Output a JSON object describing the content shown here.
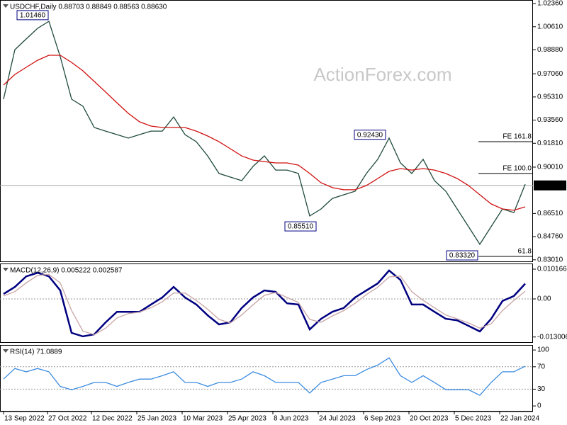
{
  "chart_data": [
    {
      "type": "line",
      "title": "USDCHF,Daily 0.88703 0.88849 0.88563 0.88630",
      "watermark": "ActionForex.com",
      "x": [
        0,
        8,
        16,
        24,
        32,
        40,
        48,
        56,
        64,
        72,
        80,
        88,
        96,
        104,
        112,
        120,
        128,
        136,
        144,
        152,
        160,
        168,
        176,
        184,
        192,
        200,
        208,
        216,
        224,
        232,
        240,
        248,
        256,
        264,
        272,
        280,
        288,
        296,
        304,
        312,
        320,
        328,
        336,
        344,
        352,
        360,
        368
      ],
      "xlim": [
        -2.5,
        373.5
      ],
      "xticks": [
        {
          "value": 0,
          "label": "13 Sep 2022"
        },
        {
          "value": 31,
          "label": "27 Oct 2022"
        },
        {
          "value": 62,
          "label": "12 Dec 2022"
        },
        {
          "value": 94,
          "label": "25 Jan 2023"
        },
        {
          "value": 126,
          "label": "10 Mar 2023"
        },
        {
          "value": 158,
          "label": "25 Apr 2023"
        },
        {
          "value": 190,
          "label": "8 Jun 2023"
        },
        {
          "value": 222,
          "label": "24 Jul 2023"
        },
        {
          "value": 254,
          "label": "6 Sep 2023"
        },
        {
          "value": 286,
          "label": "20 Oct 2023"
        },
        {
          "value": 318,
          "label": "5 Dec 2023"
        },
        {
          "value": 350,
          "label": "22 Jan 2024"
        }
      ],
      "ylim": [
        0.8284,
        1.0263
      ],
      "yticks": [
        {
          "value": 1.0236,
          "label": "1.02360"
        },
        {
          "value": 1.0061,
          "label": "1.00610"
        },
        {
          "value": 0.9888,
          "label": "0.98880"
        },
        {
          "value": 0.9706,
          "label": "0.97060"
        },
        {
          "value": 0.9531,
          "label": "0.95310"
        },
        {
          "value": 0.9356,
          "label": "0.93560"
        },
        {
          "value": 0.9181,
          "label": "0.91810"
        },
        {
          "value": 0.9001,
          "label": "0.90010"
        },
        {
          "value": 0.8651,
          "label": "0.86510"
        },
        {
          "value": 0.8476,
          "label": "0.84760"
        },
        {
          "value": 0.8301,
          "label": "0.83010"
        }
      ],
      "last_price": {
        "value": 0.8863,
        "label": "0.88630"
      },
      "annotations": [
        {
          "label": "1.01460",
          "value": 1.0146,
          "x": 32
        },
        {
          "label": "0.92430",
          "value": 0.9243,
          "x": 270
        },
        {
          "label": "0.85510",
          "value": 0.8551,
          "x": 221
        },
        {
          "label": "0.83320",
          "value": 0.8332,
          "x": 335
        }
      ],
      "levels": [
        {
          "label": "FE 161.8",
          "value": 0.9193
        },
        {
          "label": "FE 100.0",
          "value": 0.8953
        },
        {
          "label": "61.8",
          "value": 0.8327
        }
      ],
      "series": [
        {
          "color": "#1e4a3a",
          "values": [
            0.9514,
            0.9888,
            0.9969,
            1.0049,
            1.0102,
            0.9835,
            0.9514,
            0.9461,
            0.93,
            0.9273,
            0.9247,
            0.922,
            0.9247,
            0.9273,
            0.9273,
            0.938,
            0.9247,
            0.9193,
            0.9086,
            0.8953,
            0.8926,
            0.8899,
            0.9006,
            0.9086,
            0.8979,
            0.8979,
            0.8953,
            0.8632,
            0.8685,
            0.8765,
            0.8792,
            0.8819,
            0.8953,
            0.906,
            0.922,
            0.9033,
            0.8953,
            0.906,
            0.8899,
            0.8819,
            0.8685,
            0.8552,
            0.8418,
            0.8552,
            0.8685,
            0.8658,
            0.8872
          ]
        },
        {
          "color": "#d01010",
          "values": [
            0.9621,
            0.9701,
            0.9755,
            0.9808,
            0.9846,
            0.9846,
            0.9792,
            0.9728,
            0.9648,
            0.9568,
            0.9487,
            0.9407,
            0.9343,
            0.9311,
            0.93,
            0.93,
            0.93,
            0.9273,
            0.9236,
            0.9193,
            0.914,
            0.9086,
            0.9054,
            0.9043,
            0.9033,
            0.9033,
            0.9016,
            0.8953,
            0.8883,
            0.8846,
            0.883,
            0.883,
            0.8862,
            0.8915,
            0.8969,
            0.899,
            0.8979,
            0.899,
            0.8979,
            0.8953,
            0.8915,
            0.8862,
            0.8792,
            0.8723,
            0.8685,
            0.8675,
            0.8701
          ]
        }
      ]
    },
    {
      "type": "line",
      "title": "MACD(12,26,9) 0.005222 0.002587",
      "ylim": [
        -0.015,
        0.0121
      ],
      "yticks": [
        0.010166,
        {
          "value": 0,
          "label": "0.00"
        },
        -0.013006
      ],
      "grid_levels": [
        0
      ],
      "series": [
        {
          "color": "#000080",
          "values": [
            0.0017,
            0.0041,
            0.0077,
            0.0089,
            0.0077,
            0.0029,
            -0.0116,
            -0.0128,
            -0.0121,
            -0.008,
            -0.0044,
            -0.0044,
            -0.0044,
            -0.0019,
            0.0005,
            0.0041,
            0.0005,
            -0.0019,
            -0.0056,
            -0.0087,
            -0.008,
            -0.0031,
            0.0005,
            0.0029,
            0.0024,
            -0.0015,
            -0.0019,
            -0.0104,
            -0.0068,
            -0.0044,
            -0.0031,
            0.0005,
            0.0029,
            0.0053,
            0.0097,
            0.0065,
            -0.0019,
            -0.0019,
            -0.0044,
            -0.0068,
            -0.0073,
            -0.0092,
            -0.0111,
            -0.0068,
            -0.0007,
            0.001,
            0.0052
          ]
        },
        {
          "color": "#c9a5a5",
          "values": [
            0.001,
            0.0025,
            0.0055,
            0.008,
            0.0084,
            0.0055,
            -0.004,
            -0.011,
            -0.0122,
            -0.01,
            -0.0065,
            -0.005,
            -0.0045,
            -0.003,
            -0.001,
            0.002,
            0.002,
            -0.0005,
            -0.0035,
            -0.007,
            -0.0082,
            -0.0055,
            -0.002,
            0.0012,
            0.0022,
            0.0005,
            -0.0012,
            -0.007,
            -0.008,
            -0.0058,
            -0.004,
            -0.0015,
            0.0015,
            0.004,
            0.0075,
            0.0078,
            0.0025,
            -0.0005,
            -0.003,
            -0.0055,
            -0.0068,
            -0.0082,
            -0.01,
            -0.0085,
            -0.004,
            -0.0005,
            0.0026
          ]
        }
      ]
    },
    {
      "type": "line",
      "title": "RSI(14) 71.0889",
      "ylim": [
        -10,
        109
      ],
      "yticks": [
        100,
        70,
        30,
        0
      ],
      "grid_levels": [
        70,
        30
      ],
      "series": [
        {
          "color": "#3c8ce0",
          "values": [
            48,
            67,
            61,
            67,
            61,
            35,
            29,
            35,
            42,
            42,
            35,
            42,
            48,
            48,
            54,
            61,
            42,
            42,
            35,
            42,
            42,
            48,
            61,
            54,
            42,
            42,
            42,
            23,
            42,
            48,
            54,
            54,
            65,
            73,
            86,
            54,
            42,
            54,
            42,
            29,
            29,
            29,
            19,
            42,
            61,
            61,
            71
          ]
        }
      ]
    }
  ]
}
